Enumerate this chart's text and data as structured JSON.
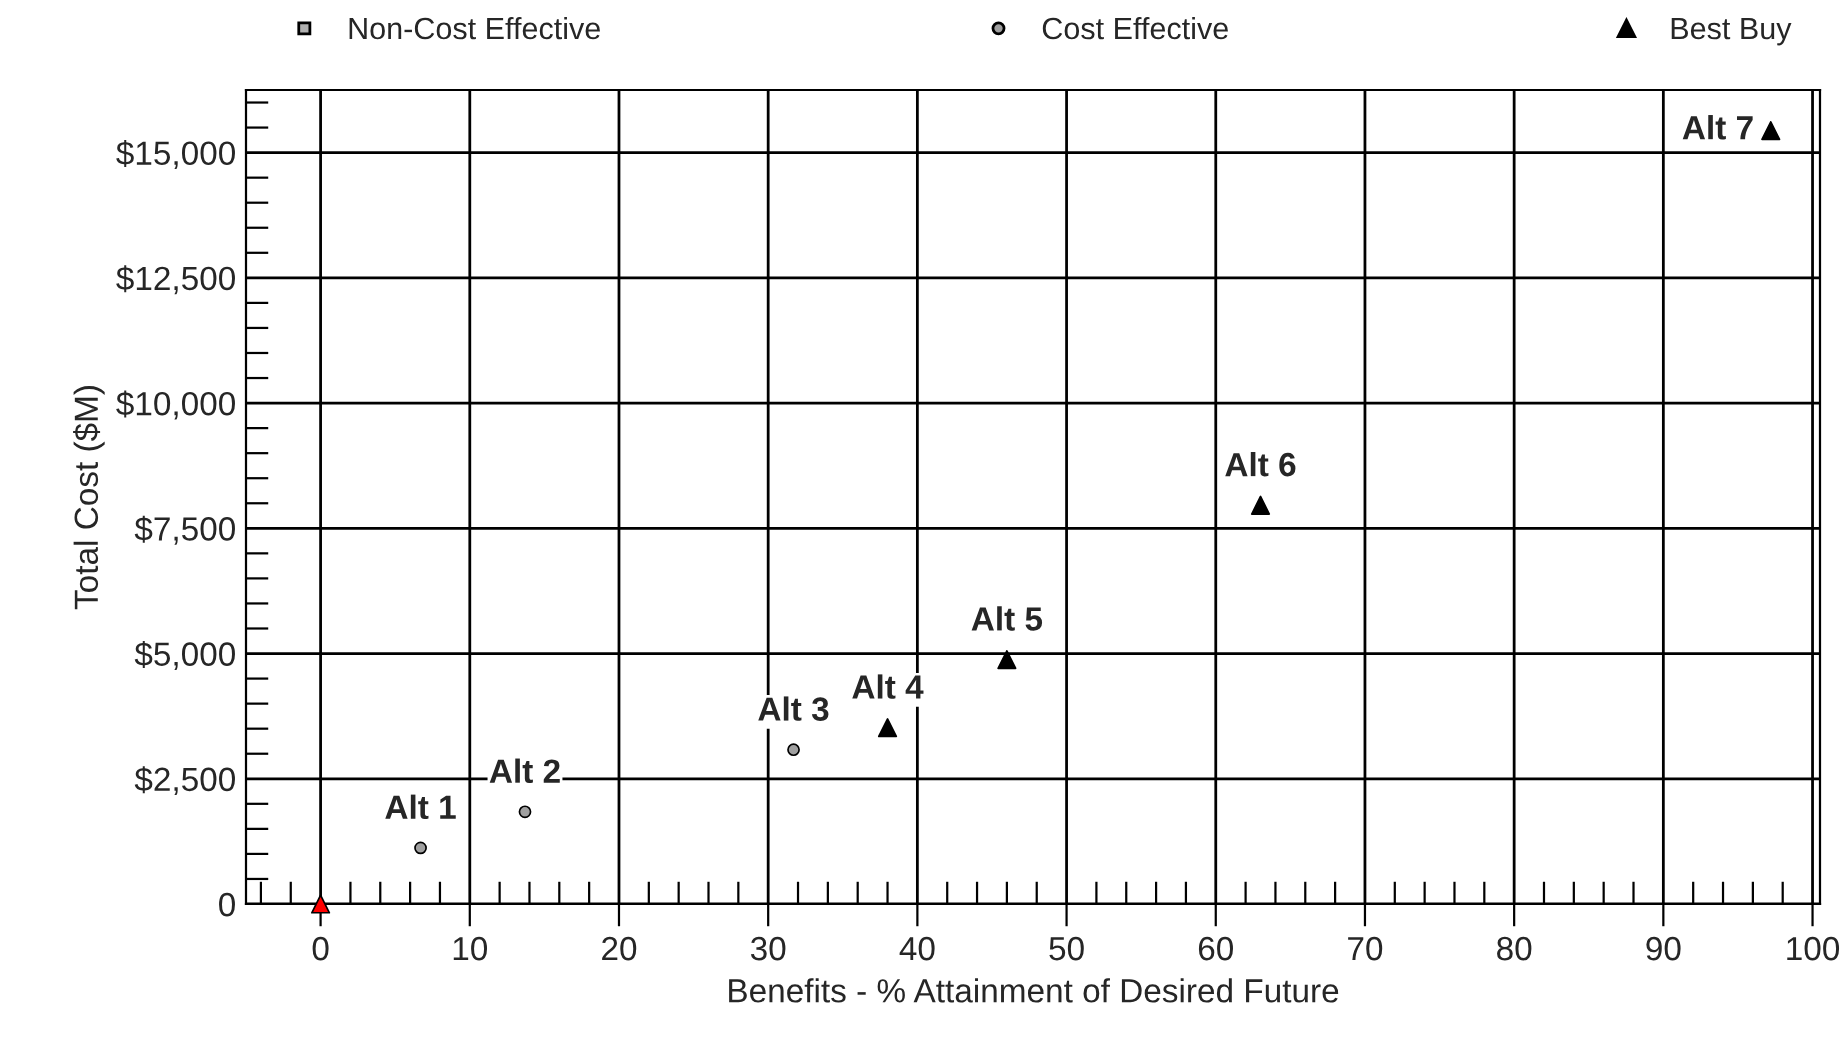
{
  "chart_data": {
    "type": "scatter",
    "xlabel": "Benefits - % Attainment of Desired Future",
    "ylabel": "Total Cost ($M)",
    "xlim": [
      -5,
      100.5
    ],
    "ylim": [
      0,
      16250
    ],
    "xticks": [
      0,
      10,
      20,
      30,
      40,
      50,
      60,
      70,
      80,
      90,
      100
    ],
    "yticks": [
      0,
      {
        "value": 2500,
        "label": "$2,500"
      },
      {
        "value": 5000,
        "label": "$5,000"
      },
      {
        "value": 7500,
        "label": "$7,500"
      },
      {
        "value": 10000,
        "label": "$10,000"
      },
      {
        "value": 12500,
        "label": "$12,500"
      },
      {
        "value": 15000,
        "label": "$15,000"
      }
    ],
    "grid": true,
    "legend": "top",
    "series": [
      {
        "name": "Non-Cost Effective",
        "color": "#b0b0b0",
        "marker": "square"
      },
      {
        "name": "Cost Effective",
        "color": "#a0a0a0",
        "marker": "circle",
        "x": [
          6.7,
          13.7,
          31.7
        ],
        "values": [
          1120,
          1840,
          3080
        ]
      },
      {
        "name": "Best Buy",
        "color": "#000000",
        "marker": "triangle",
        "x": [
          38.0,
          46.0,
          63.0,
          97.2
        ],
        "values": [
          3520,
          4880,
          7960,
          15440
        ]
      },
      {
        "color": "#ff0000",
        "marker": "triangle",
        "x": [
          0
        ],
        "values": [
          0
        ]
      }
    ],
    "annotations": [
      {
        "text": "Alt 1",
        "x": 6.7,
        "y": 1120
      },
      {
        "text": "Alt 2",
        "x": 13.7,
        "y": 1840
      },
      {
        "text": "Alt 3",
        "x": 31.7,
        "y": 3080
      },
      {
        "text": "Alt 4",
        "x": 38.0,
        "y": 3520
      },
      {
        "text": "Alt 5",
        "x": 46.0,
        "y": 4880
      },
      {
        "text": "Alt 6",
        "x": 63.0,
        "y": 7960
      },
      {
        "text": "Alt 7",
        "x": 97.2,
        "y": 15440
      }
    ]
  }
}
